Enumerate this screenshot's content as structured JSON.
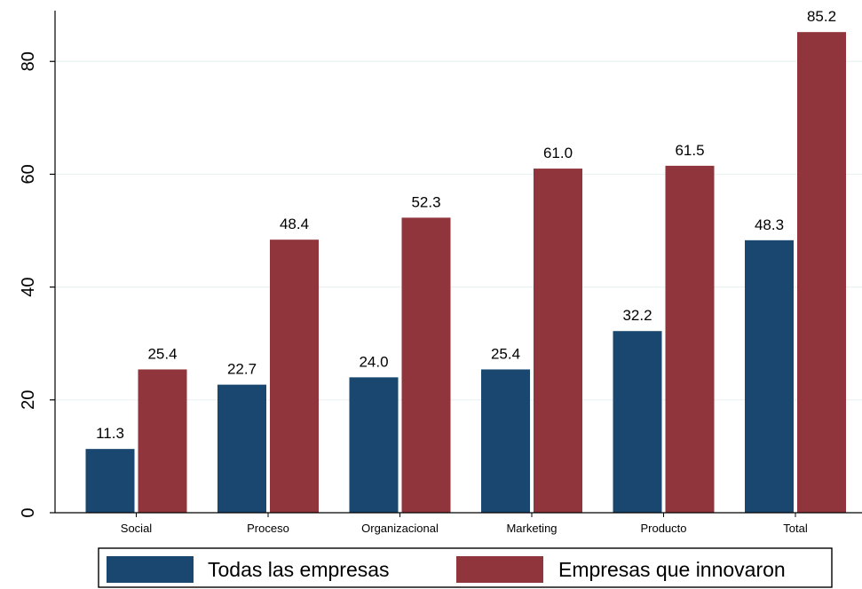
{
  "chart_data": {
    "type": "bar",
    "categories": [
      "Social",
      "Proceso",
      "Organizacional",
      "Marketing",
      "Producto",
      "Total"
    ],
    "series": [
      {
        "name": "Todas las empresas",
        "values": [
          11.3,
          22.7,
          24.0,
          25.4,
          32.2,
          48.3
        ],
        "color": "#1a476f",
        "labels": [
          "11.3",
          "22.7",
          "24.0",
          "25.4",
          "32.2",
          "48.3"
        ]
      },
      {
        "name": "Empresas que innovaron",
        "values": [
          25.4,
          48.4,
          52.3,
          61.0,
          61.5,
          85.2
        ],
        "color": "#90353b",
        "labels": [
          "25.4",
          "48.4",
          "52.3",
          "61.0",
          "61.5",
          "85.2"
        ]
      }
    ],
    "title": "",
    "xlabel": "",
    "ylabel": "",
    "ylim": [
      0,
      89
    ],
    "yticks": [
      "0",
      "20",
      "40",
      "60",
      "80"
    ],
    "grid": true,
    "legend_position": "bottom"
  }
}
